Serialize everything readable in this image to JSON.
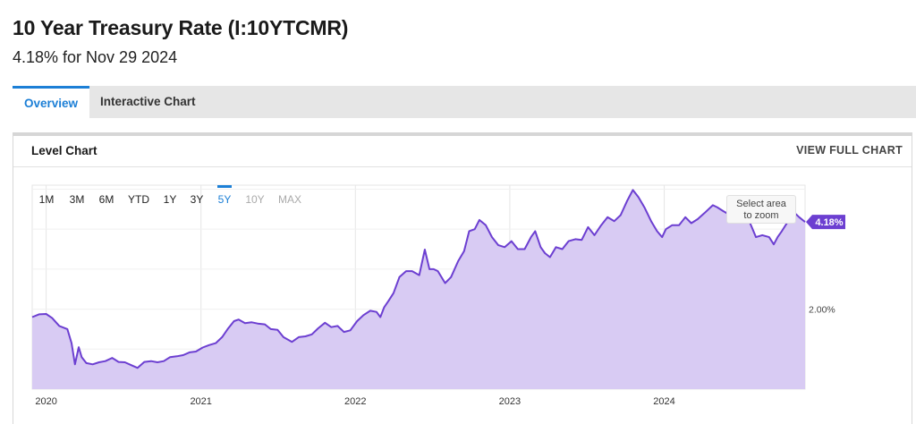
{
  "page": {
    "title": "10 Year Treasury Rate (I:10YTCMR)",
    "subtitle": "4.18% for Nov 29 2024"
  },
  "tabs": [
    {
      "label": "Overview",
      "active": true
    },
    {
      "label": "Interactive Chart",
      "active": false
    }
  ],
  "panel": {
    "title": "Level Chart",
    "view_full_label": "VIEW FULL CHART"
  },
  "range_buttons": [
    {
      "label": "1M",
      "state": "enabled"
    },
    {
      "label": "3M",
      "state": "enabled"
    },
    {
      "label": "6M",
      "state": "enabled"
    },
    {
      "label": "YTD",
      "state": "enabled"
    },
    {
      "label": "1Y",
      "state": "enabled"
    },
    {
      "label": "3Y",
      "state": "enabled"
    },
    {
      "label": "5Y",
      "state": "active"
    },
    {
      "label": "10Y",
      "state": "disabled"
    },
    {
      "label": "MAX",
      "state": "disabled"
    }
  ],
  "zoom_hint": [
    "Select area",
    "to zoom"
  ],
  "colors": {
    "accent": "#1c7fd6",
    "line": "#6c3fd1",
    "fill": "#d8cbf3",
    "badge": "#6c3fd1",
    "grid": "#e6e6e6"
  },
  "chart_data": {
    "type": "area",
    "title": "",
    "xlabel": "",
    "ylabel": "",
    "x_ticks": [
      "2020",
      "2021",
      "2022",
      "2023",
      "2024"
    ],
    "y_tick_labels": [
      "2.00%"
    ],
    "y_ticks": [
      2.0
    ],
    "ylim": [
      0,
      5.1
    ],
    "xlim": [
      "2019-11-29",
      "2024-11-29"
    ],
    "grid": true,
    "legend": "none",
    "last_value_label": "4.18%",
    "series": [
      {
        "x": [
          "2019-11-29",
          "2019-12-15",
          "2020-01-01",
          "2020-01-15",
          "2020-02-01",
          "2020-02-20",
          "2020-03-01",
          "2020-03-09",
          "2020-03-18",
          "2020-03-25",
          "2020-04-05",
          "2020-04-20",
          "2020-05-05",
          "2020-05-20",
          "2020-06-05",
          "2020-06-20",
          "2020-07-05",
          "2020-07-20",
          "2020-08-04",
          "2020-08-20",
          "2020-09-05",
          "2020-09-20",
          "2020-10-05",
          "2020-10-20",
          "2020-11-05",
          "2020-11-20",
          "2020-12-05",
          "2020-12-20",
          "2021-01-05",
          "2021-01-20",
          "2021-02-05",
          "2021-02-20",
          "2021-03-05",
          "2021-03-20",
          "2021-03-31",
          "2021-04-15",
          "2021-05-01",
          "2021-05-15",
          "2021-06-01",
          "2021-06-15",
          "2021-07-01",
          "2021-07-15",
          "2021-08-04",
          "2021-08-20",
          "2021-09-05",
          "2021-09-20",
          "2021-10-05",
          "2021-10-21",
          "2021-11-05",
          "2021-11-20",
          "2021-12-05",
          "2021-12-20",
          "2022-01-05",
          "2022-01-20",
          "2022-02-05",
          "2022-02-20",
          "2022-03-01",
          "2022-03-10",
          "2022-03-20",
          "2022-04-01",
          "2022-04-15",
          "2022-05-01",
          "2022-05-15",
          "2022-06-01",
          "2022-06-14",
          "2022-06-25",
          "2022-07-05",
          "2022-07-15",
          "2022-08-01",
          "2022-08-15",
          "2022-09-01",
          "2022-09-15",
          "2022-09-27",
          "2022-10-10",
          "2022-10-21",
          "2022-11-05",
          "2022-11-20",
          "2022-12-05",
          "2022-12-20",
          "2023-01-05",
          "2023-01-20",
          "2023-02-05",
          "2023-02-20",
          "2023-03-02",
          "2023-03-15",
          "2023-03-25",
          "2023-04-06",
          "2023-04-20",
          "2023-05-05",
          "2023-05-20",
          "2023-06-05",
          "2023-06-20",
          "2023-07-05",
          "2023-07-20",
          "2023-08-05",
          "2023-08-20",
          "2023-09-05",
          "2023-09-20",
          "2023-10-05",
          "2023-10-19",
          "2023-11-01",
          "2023-11-15",
          "2023-12-01",
          "2023-12-15",
          "2023-12-27",
          "2024-01-05",
          "2024-01-20",
          "2024-02-05",
          "2024-02-20",
          "2024-03-05",
          "2024-03-20",
          "2024-04-05",
          "2024-04-25",
          "2024-05-05",
          "2024-05-20",
          "2024-06-05",
          "2024-06-20",
          "2024-07-05",
          "2024-07-20",
          "2024-08-05",
          "2024-08-20",
          "2024-09-05",
          "2024-09-16",
          "2024-09-25",
          "2024-10-05",
          "2024-10-20",
          "2024-11-05",
          "2024-11-15",
          "2024-11-29"
        ],
        "y": [
          1.8,
          1.87,
          1.88,
          1.78,
          1.58,
          1.5,
          1.15,
          0.62,
          1.05,
          0.8,
          0.65,
          0.62,
          0.67,
          0.7,
          0.78,
          0.68,
          0.67,
          0.6,
          0.53,
          0.68,
          0.7,
          0.67,
          0.7,
          0.8,
          0.82,
          0.85,
          0.92,
          0.94,
          1.04,
          1.1,
          1.15,
          1.3,
          1.5,
          1.7,
          1.74,
          1.65,
          1.67,
          1.64,
          1.62,
          1.5,
          1.48,
          1.3,
          1.18,
          1.3,
          1.32,
          1.37,
          1.52,
          1.66,
          1.55,
          1.58,
          1.43,
          1.47,
          1.7,
          1.85,
          1.96,
          1.93,
          1.8,
          2.05,
          2.2,
          2.4,
          2.8,
          2.95,
          2.95,
          2.85,
          3.49,
          3.0,
          3.0,
          2.95,
          2.65,
          2.8,
          3.2,
          3.45,
          3.95,
          4.0,
          4.23,
          4.1,
          3.8,
          3.6,
          3.55,
          3.7,
          3.5,
          3.5,
          3.8,
          3.95,
          3.55,
          3.4,
          3.3,
          3.55,
          3.5,
          3.7,
          3.75,
          3.73,
          4.05,
          3.85,
          4.1,
          4.3,
          4.2,
          4.35,
          4.7,
          4.98,
          4.8,
          4.55,
          4.2,
          3.95,
          3.8,
          4.0,
          4.1,
          4.1,
          4.3,
          4.15,
          4.25,
          4.4,
          4.6,
          4.55,
          4.45,
          4.35,
          4.25,
          4.4,
          4.2,
          3.8,
          3.85,
          3.8,
          3.62,
          3.8,
          3.95,
          4.2,
          4.4,
          4.3,
          4.18
        ]
      }
    ]
  }
}
